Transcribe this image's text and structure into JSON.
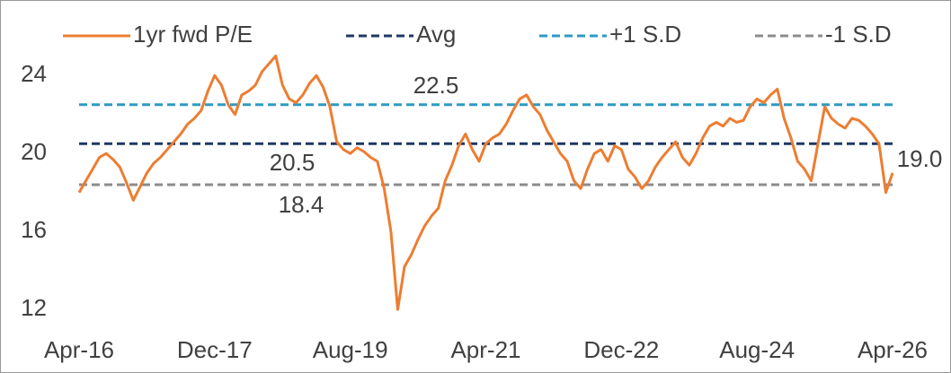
{
  "chart_data": {
    "type": "line",
    "categories": [
      "Apr-16",
      null,
      null,
      null,
      null,
      null,
      null,
      null,
      null,
      null,
      null,
      null,
      null,
      null,
      null,
      null,
      null,
      null,
      null,
      null,
      "Dec-17",
      null,
      null,
      null,
      null,
      null,
      null,
      null,
      null,
      null,
      null,
      null,
      null,
      null,
      null,
      null,
      null,
      null,
      null,
      null,
      "Aug-19",
      null,
      null,
      null,
      null,
      null,
      null,
      null,
      null,
      null,
      null,
      null,
      null,
      null,
      null,
      null,
      null,
      null,
      null,
      null,
      "Apr-21",
      null,
      null,
      null,
      null,
      null,
      null,
      null,
      null,
      null,
      null,
      null,
      null,
      null,
      null,
      null,
      null,
      null,
      null,
      null,
      "Dec-22",
      null,
      null,
      null,
      null,
      null,
      null,
      null,
      null,
      null,
      null,
      null,
      null,
      null,
      null,
      null,
      null,
      null,
      null,
      null,
      "Aug-24",
      null,
      null,
      null,
      null,
      null,
      null,
      null,
      null,
      null,
      null,
      null,
      null,
      null,
      null,
      null,
      null,
      null,
      null,
      null,
      "Apr-26"
    ],
    "series": [
      {
        "name": "1yr fwd P/E",
        "color": "#ED7D31",
        "values": [
          18.0,
          18.6,
          19.2,
          19.8,
          20.0,
          19.7,
          19.3,
          18.5,
          17.6,
          18.3,
          19.0,
          19.5,
          19.8,
          20.2,
          20.6,
          21.0,
          21.5,
          21.8,
          22.2,
          23.2,
          24.0,
          23.5,
          22.5,
          22.0,
          23.0,
          23.2,
          23.5,
          24.2,
          24.6,
          25.0,
          23.5,
          22.8,
          22.6,
          23.0,
          23.6,
          24.0,
          23.4,
          22.4,
          20.6,
          20.2,
          20.0,
          20.3,
          20.1,
          19.8,
          19.6,
          18.2,
          16.0,
          12.0,
          14.2,
          14.8,
          15.6,
          16.3,
          16.8,
          17.2,
          18.6,
          19.4,
          20.4,
          21.0,
          20.2,
          19.6,
          20.5,
          20.8,
          21.0,
          21.5,
          22.2,
          22.8,
          23.0,
          22.4,
          22.0,
          21.2,
          20.6,
          20.0,
          19.6,
          18.6,
          18.2,
          19.2,
          20.0,
          20.2,
          19.6,
          20.4,
          20.2,
          19.2,
          18.8,
          18.2,
          18.6,
          19.3,
          19.8,
          20.2,
          20.6,
          19.8,
          19.4,
          20.0,
          20.8,
          21.4,
          21.6,
          21.4,
          21.8,
          21.6,
          21.7,
          22.4,
          22.8,
          22.6,
          23.0,
          23.3,
          21.8,
          20.8,
          19.6,
          19.2,
          18.6,
          20.5,
          22.4,
          21.8,
          21.5,
          21.3,
          21.8,
          21.7,
          21.4,
          21.0,
          20.5,
          18.0,
          19.0
        ],
        "value_labels": [
          null,
          null,
          null,
          null,
          null,
          null,
          null,
          null,
          null,
          null,
          null,
          null,
          null,
          null,
          null,
          null,
          null,
          null,
          null,
          null,
          null,
          null,
          null,
          null,
          null,
          null,
          null,
          null,
          null,
          null,
          null,
          null,
          null,
          null,
          null,
          null,
          null,
          null,
          null,
          null,
          null,
          null,
          null,
          null,
          null,
          null,
          null,
          null,
          null,
          null,
          null,
          null,
          null,
          null,
          null,
          null,
          null,
          null,
          null,
          null,
          null,
          null,
          null,
          null,
          null,
          null,
          null,
          null,
          null,
          null,
          null,
          null,
          null,
          null,
          null,
          null,
          null,
          null,
          null,
          null,
          null,
          null,
          null,
          null,
          null,
          null,
          null,
          null,
          null,
          null,
          null,
          null,
          null,
          null,
          null,
          null,
          null,
          null,
          null,
          null,
          null,
          null,
          null,
          null,
          null,
          null,
          null,
          null,
          null,
          null,
          null,
          null,
          null,
          null,
          null,
          null,
          null,
          null,
          null,
          null,
          "19.0"
        ]
      }
    ],
    "reference_lines": [
      {
        "name": "Avg",
        "color": "#1F3864",
        "value": 20.5
      },
      {
        "name": "+1 S.D",
        "color": "#2E9AC4",
        "value": 22.5
      },
      {
        "name": "-1 S.D",
        "color": "#8C8C8C",
        "value": 18.4
      }
    ],
    "ylim": [
      11,
      27.5
    ],
    "yticks": [
      12,
      16,
      20,
      24
    ],
    "grid": false
  }
}
